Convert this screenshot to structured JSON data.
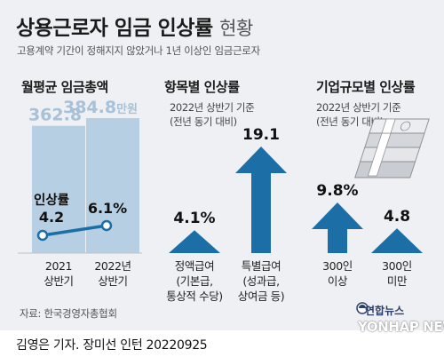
{
  "header": {
    "title": "상용근로자 임금 인상률",
    "title_suffix": "현황",
    "subtitle": "고용계약 기간이 정해지지 않았거나 1년 이상인 임금근로자"
  },
  "sections": {
    "monthly": {
      "title": "월평균 임금총액"
    },
    "by_item": {
      "title": "항목별 인상률",
      "note_line1": "2022년 상반기 기준",
      "note_line2": "(전년 동기 대비)"
    },
    "by_size": {
      "title": "기업규모별 인상률",
      "note_line1": "2022년 상반기 기준",
      "note_line2": "(전년 동기 대비)"
    }
  },
  "source": "자료: 한국경영자총협회",
  "credit": "김영은 기자. 장미선 인턴  20220925",
  "logo": {
    "korean": "연합뉴스",
    "english": "YONHAP NEWS"
  },
  "colors": {
    "bar_light": "#b7cfe2",
    "bar_light_text": "#a6c1d8",
    "arrow_blue": "#1c6fa6",
    "line_blue": "#1c6fa6",
    "background": "#eef0f3"
  },
  "chart_data": [
    {
      "type": "bar",
      "title": "월평균 임금총액",
      "categories": [
        "2021 상반기",
        "2022년 상반기"
      ],
      "category_lines": [
        [
          "2021",
          "상반기"
        ],
        [
          "2022년",
          "상반기"
        ]
      ],
      "values": [
        362.8,
        384.8
      ],
      "value_labels": [
        "362.8",
        "384.8"
      ],
      "unit": "만원",
      "ylim": [
        0,
        400
      ],
      "overlay_line": {
        "name": "인상률",
        "values": [
          4.2,
          6.1
        ],
        "value_labels": [
          "4.2",
          "6.1%"
        ]
      }
    },
    {
      "type": "bar",
      "title": "항목별 인상률",
      "categories": [
        "정액급여 (기본급, 통상적 수당)",
        "특별급여 (성과급, 상여금 등)"
      ],
      "category_lines": [
        [
          "정액급여",
          "(기본급,",
          "통상적 수당)"
        ],
        [
          "특별급여",
          "(성과급,",
          "상여금 등)"
        ]
      ],
      "values": [
        4.1,
        19.1
      ],
      "value_labels": [
        "4.1%",
        "19.1"
      ],
      "unit": "%"
    },
    {
      "type": "bar",
      "title": "기업규모별 인상률",
      "categories": [
        "300인 이상",
        "300인 미만"
      ],
      "category_lines": [
        [
          "300인",
          "이상"
        ],
        [
          "300인",
          "미만"
        ]
      ],
      "values": [
        9.8,
        4.8
      ],
      "value_labels": [
        "9.8%",
        "4.8"
      ],
      "unit": "%"
    }
  ]
}
